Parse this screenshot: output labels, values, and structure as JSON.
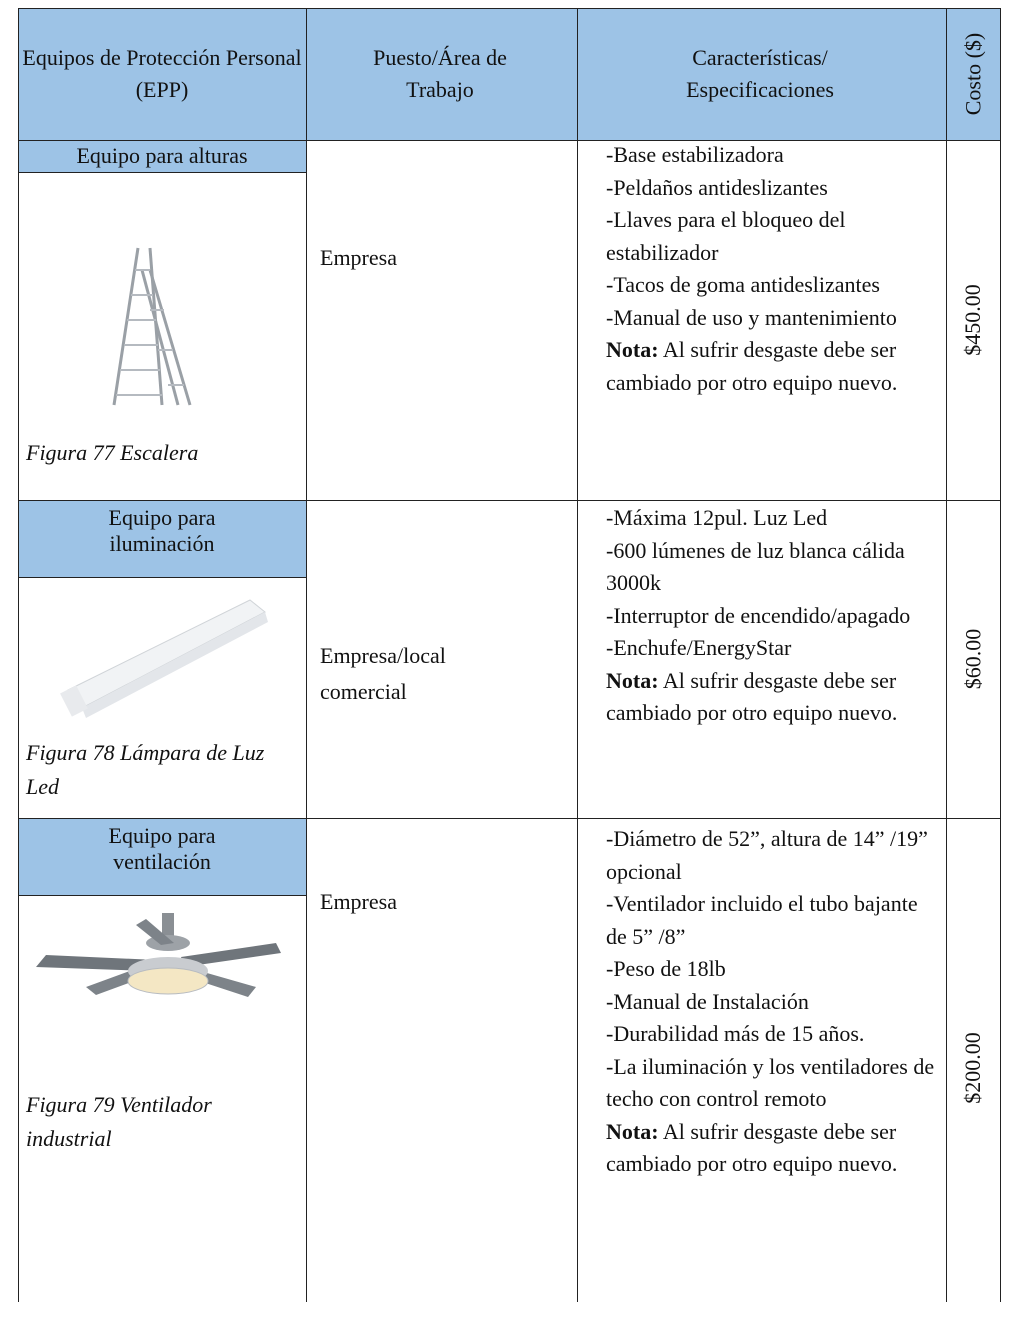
{
  "table": {
    "headers": [
      "Equipos de Protección Personal (EPP)",
      "Puesto/Área de Trabajo",
      "Características/ Especificaciones",
      "Costo ($)"
    ],
    "rows": [
      {
        "category": "Equipo para alturas",
        "caption": "Figura 77 Escalera",
        "place": "Empresa",
        "items": [
          "-Base estabilizadora",
          "-Peldaños antideslizantes",
          "-Llaves para el bloqueo del estabilizador",
          "-Tacos de goma antideslizantes",
          "-Manual de uso y mantenimiento"
        ],
        "note_label": "Nota:",
        "note": "Al sufrir desgaste debe ser cambiado por otro equipo nuevo.",
        "cost": "$450.00"
      },
      {
        "category": "Equipo para iluminación",
        "caption": "Figura 78 Lámpara de Luz Led",
        "place": "Empresa/local comercial",
        "items": [
          "-Máxima 12pul. Luz Led",
          "-600 lúmenes de luz blanca cálida 3000k",
          "-Interruptor de encendido/apagado",
          "-Enchufe/EnergyStar"
        ],
        "note_label": "Nota:",
        "note": "Al sufrir desgaste debe ser cambiado por otro equipo nuevo.",
        "cost": "$60.00"
      },
      {
        "category": "Equipo para ventilación",
        "caption": "Figura 79 Ventilador industrial",
        "place": "Empresa",
        "items": [
          "-Diámetro de 52”, altura de 14” /19” opcional",
          "-Ventilador incluido el tubo bajante de 5” /8”",
          "-Peso de 18lb",
          "-Manual de Instalación",
          "-Durabilidad más de 15 años.",
          "-La iluminación y los ventiladores de techo con control remoto"
        ],
        "note_label": "Nota:",
        "note": "Al sufrir desgaste debe ser cambiado por otro equipo nuevo.",
        "cost": "$200.00"
      }
    ]
  }
}
